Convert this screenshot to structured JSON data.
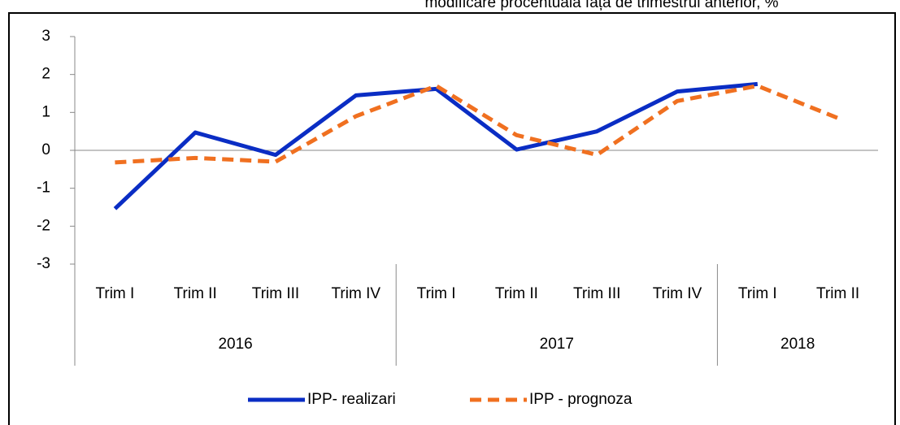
{
  "chart_data": {
    "type": "line",
    "title": "modificare procentuală față de trimestrul anterior, %",
    "categories": [
      "Trim I",
      "Trim II",
      "Trim III",
      "Trim IV",
      "Trim I",
      "Trim II",
      "Trim III",
      "Trim IV",
      "Trim I",
      "Trim II"
    ],
    "groups": [
      {
        "label": "2016",
        "span": 4
      },
      {
        "label": "2017",
        "span": 4
      },
      {
        "label": "2018",
        "span": 2
      }
    ],
    "series": [
      {
        "name": "IPP- realizari",
        "color": "#0a2dc4",
        "dash": false,
        "values": [
          -1.54,
          0.47,
          -0.12,
          1.45,
          1.62,
          0.02,
          0.5,
          1.55,
          1.75,
          null
        ]
      },
      {
        "name": "IPP - prognoza",
        "color": "#f07020",
        "dash": true,
        "values": [
          -0.32,
          -0.2,
          -0.3,
          0.9,
          1.7,
          0.4,
          -0.12,
          1.3,
          1.7,
          0.85
        ]
      }
    ],
    "ylim": [
      -3,
      3
    ],
    "yticks": [
      -3,
      -2,
      -1,
      0,
      1,
      2,
      3
    ],
    "legend": "bottom"
  }
}
